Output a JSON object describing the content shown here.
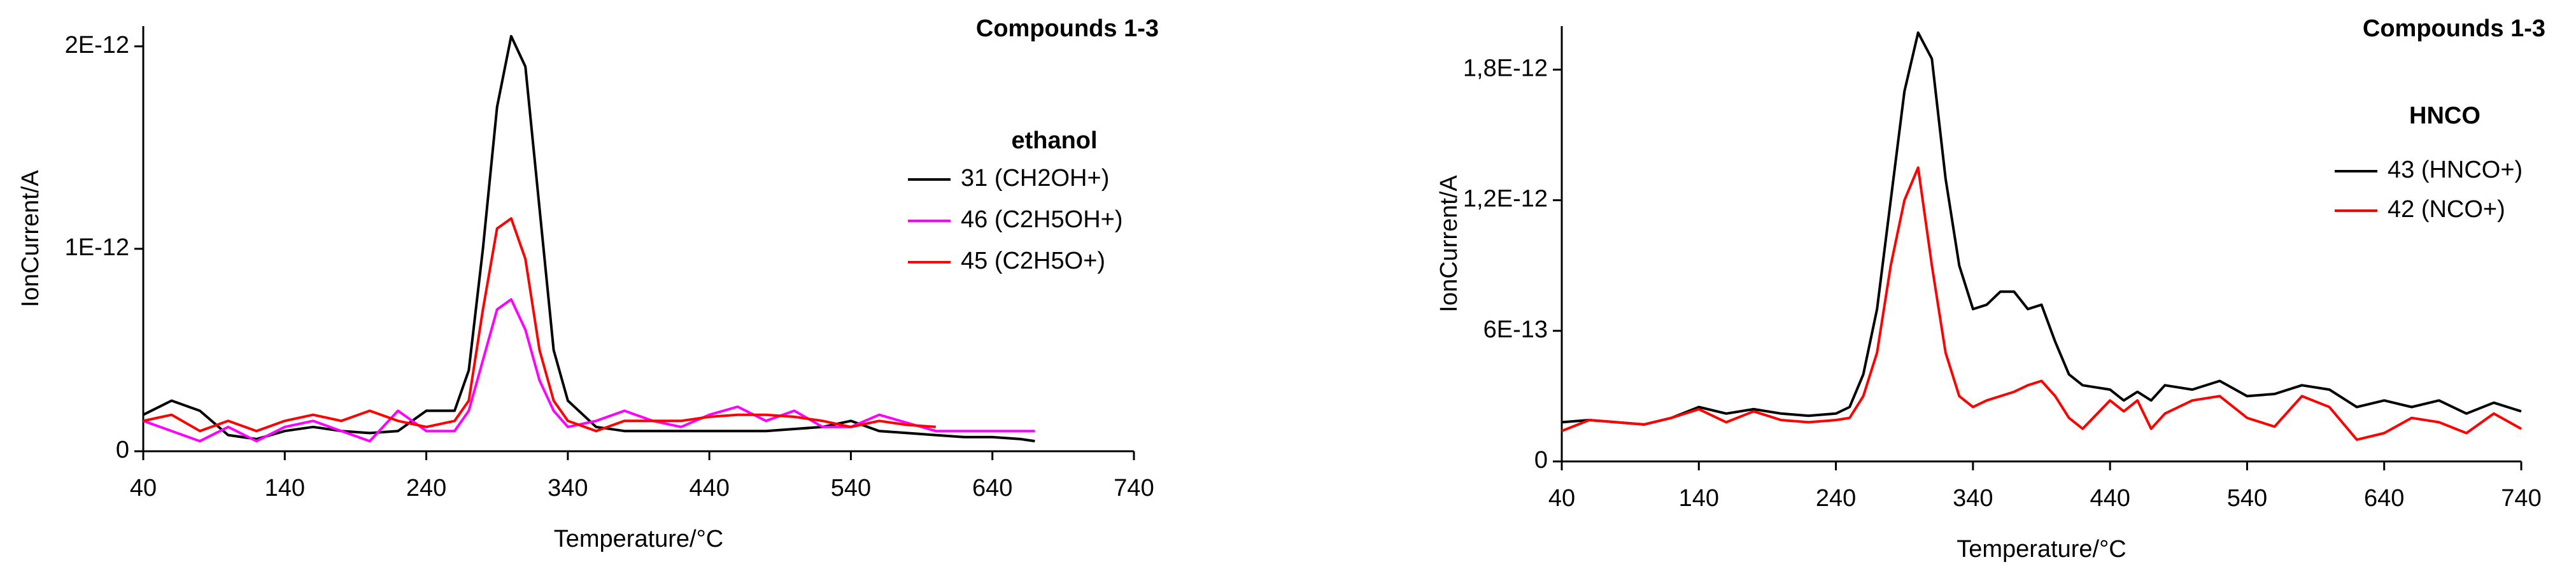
{
  "chart_data": [
    {
      "type": "line",
      "title": "Compounds 1-3",
      "legend_title": "ethanol",
      "x_label": "Temperature/°C",
      "y_label": "IonCurrent/A",
      "x": [
        40,
        60,
        80,
        100,
        120,
        140,
        160,
        180,
        200,
        220,
        240,
        260,
        270,
        280,
        290,
        300,
        310,
        320,
        330,
        340,
        360,
        380,
        400,
        420,
        440,
        460,
        480,
        500,
        520,
        540,
        560,
        580,
        600,
        620,
        640,
        660,
        670
      ],
      "series": [
        {
          "name": "31 (CH2OH+)",
          "color": "#000000",
          "values": [
            1.8e-13,
            2.5e-13,
            2e-13,
            8e-14,
            6e-14,
            1e-13,
            1.2e-13,
            1e-13,
            9e-14,
            1e-13,
            2e-13,
            2e-13,
            4e-13,
            1e-12,
            1.7e-12,
            2.05e-12,
            1.9e-12,
            1.2e-12,
            5e-13,
            2.5e-13,
            1.2e-13,
            1e-13,
            1e-13,
            1e-13,
            1e-13,
            1e-13,
            1e-13,
            1.1e-13,
            1.2e-13,
            1.5e-13,
            1e-13,
            9e-14,
            8e-14,
            7e-14,
            7e-14,
            6e-14,
            5e-14
          ]
        },
        {
          "name": "46 (C2H5OH+)",
          "color": "#ff00ff",
          "values": [
            1.5e-13,
            1e-13,
            5e-14,
            1.2e-13,
            5e-14,
            1.2e-13,
            1.5e-13,
            1e-13,
            5e-14,
            2e-13,
            1e-13,
            1e-13,
            2e-13,
            4.5e-13,
            7e-13,
            7.5e-13,
            6e-13,
            3.5e-13,
            2e-13,
            1.2e-13,
            1.5e-13,
            2e-13,
            1.5e-13,
            1.2e-13,
            1.8e-13,
            2.2e-13,
            1.5e-13,
            2e-13,
            1.2e-13,
            1.2e-13,
            1.8e-13,
            1.4e-13,
            1e-13,
            1e-13,
            1e-13,
            1e-13,
            1e-13
          ]
        },
        {
          "name": "45 (C2H5O+)",
          "color": "#ff0000",
          "values": [
            1.5e-13,
            1.8e-13,
            1e-13,
            1.5e-13,
            1e-13,
            1.5e-13,
            1.8e-13,
            1.5e-13,
            2e-13,
            1.5e-13,
            1.2e-13,
            1.5e-13,
            2.5e-13,
            7e-13,
            1.1e-12,
            1.15e-12,
            9.5e-13,
            5e-13,
            2.5e-13,
            1.5e-13,
            1e-13,
            1.5e-13,
            1.5e-13,
            1.5e-13,
            1.7e-13,
            1.8e-13,
            1.8e-13,
            1.7e-13,
            1.5e-13,
            1.2e-13,
            1.5e-13,
            1.3e-13,
            1.2e-13,
            null,
            null,
            null,
            null
          ]
        }
      ],
      "xlim": [
        40,
        740
      ],
      "xticks": [
        40,
        140,
        240,
        340,
        440,
        540,
        640,
        740
      ],
      "ylim": [
        0,
        2.1e-12
      ],
      "yticks": [
        0,
        {
          "value": 1e-12,
          "label": "1E-12"
        },
        {
          "value": 2e-12,
          "label": "2E-12"
        }
      ],
      "grid": false
    },
    {
      "type": "line",
      "title": "Compounds 1-3",
      "legend_title": "HNCO",
      "x_label": "Temperature/°C",
      "y_label": "IonCurrent/A",
      "x": [
        40,
        60,
        80,
        100,
        120,
        140,
        160,
        180,
        200,
        220,
        240,
        250,
        260,
        270,
        280,
        290,
        300,
        310,
        320,
        330,
        340,
        350,
        360,
        370,
        380,
        390,
        400,
        410,
        420,
        440,
        450,
        460,
        470,
        480,
        500,
        520,
        540,
        560,
        580,
        600,
        620,
        640,
        660,
        680,
        700,
        720,
        740
      ],
      "series": [
        {
          "name": "43 (HNCO+)",
          "color": "#000000",
          "values": [
            1.8e-13,
            1.9e-13,
            1.8e-13,
            1.7e-13,
            2e-13,
            2.5e-13,
            2.2e-13,
            2.4e-13,
            2.2e-13,
            2.1e-13,
            2.2e-13,
            2.5e-13,
            4e-13,
            7e-13,
            1.2e-12,
            1.7e-12,
            1.97e-12,
            1.85e-12,
            1.3e-12,
            9e-13,
            7e-13,
            7.2e-13,
            7.8e-13,
            7.8e-13,
            7e-13,
            7.2e-13,
            5.5e-13,
            4e-13,
            3.5e-13,
            3.3e-13,
            2.8e-13,
            3.2e-13,
            2.8e-13,
            3.5e-13,
            3.3e-13,
            3.7e-13,
            3e-13,
            3.1e-13,
            3.5e-13,
            3.3e-13,
            2.5e-13,
            2.8e-13,
            2.5e-13,
            2.8e-13,
            2.2e-13,
            2.7e-13,
            2.3e-13
          ]
        },
        {
          "name": "42 (NCO+)",
          "color": "#ff0000",
          "values": [
            1.4e-13,
            1.9e-13,
            1.8e-13,
            1.7e-13,
            2e-13,
            2.4e-13,
            1.8e-13,
            2.3e-13,
            1.9e-13,
            1.8e-13,
            1.9e-13,
            2e-13,
            3e-13,
            5e-13,
            9e-13,
            1.2e-12,
            1.35e-12,
            9e-13,
            5e-13,
            3e-13,
            2.5e-13,
            2.8e-13,
            3e-13,
            3.2e-13,
            3.5e-13,
            3.7e-13,
            3e-13,
            2e-13,
            1.5e-13,
            2.8e-13,
            2.3e-13,
            2.8e-13,
            1.5e-13,
            2.2e-13,
            2.8e-13,
            3e-13,
            2e-13,
            1.6e-13,
            3e-13,
            2.5e-13,
            1e-13,
            1.3e-13,
            2e-13,
            1.8e-13,
            1.3e-13,
            2.2e-13,
            1.5e-13
          ]
        }
      ],
      "xlim": [
        40,
        740
      ],
      "xticks": [
        40,
        140,
        240,
        340,
        440,
        540,
        640,
        740
      ],
      "ylim": [
        0,
        2e-12
      ],
      "yticks": [
        0,
        {
          "value": 6e-13,
          "label": "6E-13"
        },
        {
          "value": 1.2e-12,
          "label": "1,2E-12"
        },
        {
          "value": 1.8e-12,
          "label": "1,8E-12"
        }
      ],
      "grid": false
    }
  ]
}
